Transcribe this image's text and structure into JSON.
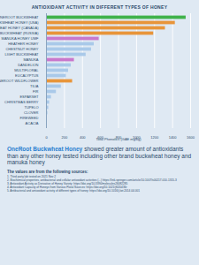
{
  "chart_data": {
    "type": "bar",
    "orientation": "horizontal",
    "title": "ANTIOXIDANT ACTIVITY IN DIFFERENT TYPES OF HONEY",
    "x_label": "Total Phenolics (GAE mg/kg)",
    "categories": [
      "ONEROOT BUCKWHEAT",
      "BUCKWHEAT HONEY (USA)",
      "BUCKWHEAT HONEY (CANADA)",
      "BUCKWHEAT (RUSSIA)",
      "MANUKA HONEY UMF",
      "HEATHER HONEY",
      "CHESTNUT HONEY",
      "LIGHT BUCKWHEAT",
      "MANUKA",
      "DANDELION",
      "MULTIFLORAL",
      "EUCALYPTUS",
      "ONEROOT WILDFLOWER",
      "TILIA",
      "FIR",
      "ESPARSET",
      "CHRISTMAS BERRY",
      "TUPELO",
      "CLOVER",
      "FIREWEED",
      "ACACIA"
    ],
    "values": [
      1550,
      1430,
      1320,
      1190,
      585,
      530,
      500,
      440,
      310,
      275,
      245,
      220,
      290,
      165,
      110,
      55,
      35,
      25,
      15,
      8,
      5
    ],
    "colors": [
      "#3fb24a",
      "#e8953a",
      "#e8953a",
      "#e8953a",
      "#c978cc",
      "#a9c9e9",
      "#a9c9e9",
      "#a9c9e9",
      "#c978cc",
      "#a9c9e9",
      "#a9c9e9",
      "#a9c9e9",
      "#e8953a",
      "#a9c9e9",
      "#a9c9e9",
      "#a9c9e9",
      "#a9c9e9",
      "#a9c9e9",
      "#a9c9e9",
      "#a9c9e9",
      "#a9c9e9"
    ],
    "xlim": [
      0,
      1600
    ],
    "xticks": [
      0,
      200,
      400,
      600,
      800,
      1000,
      1200,
      1400,
      1600
    ],
    "grid": true,
    "annotations": [
      "OneRoot Buckwheat Honey",
      "showed greater amount of antioxidants than any other honey tested including other brand buckwheat honey and manuka honey",
      "The values are from the following sources:",
      "1. Third party lab tested on 2021 Nov 2",
      "2. Biochemical properties, antibacterial and cellular antioxidant activities (...) https://link.springer.com/article/10.1007/s00217-010-1315-3",
      "3. Antioxidant Activity as Derivative of Honey Variety: https://doi.org/10.3390/molecules26082285",
      "4. Antioxidant Capacity of Honeys from Various Floral Sources: https://doi.org/10.1021/jf020436r",
      "5. Antibacterial and antioxidant activity of different types of honey: https://doi.org/10.1016/j.lwt.2014.04.001"
    ]
  }
}
